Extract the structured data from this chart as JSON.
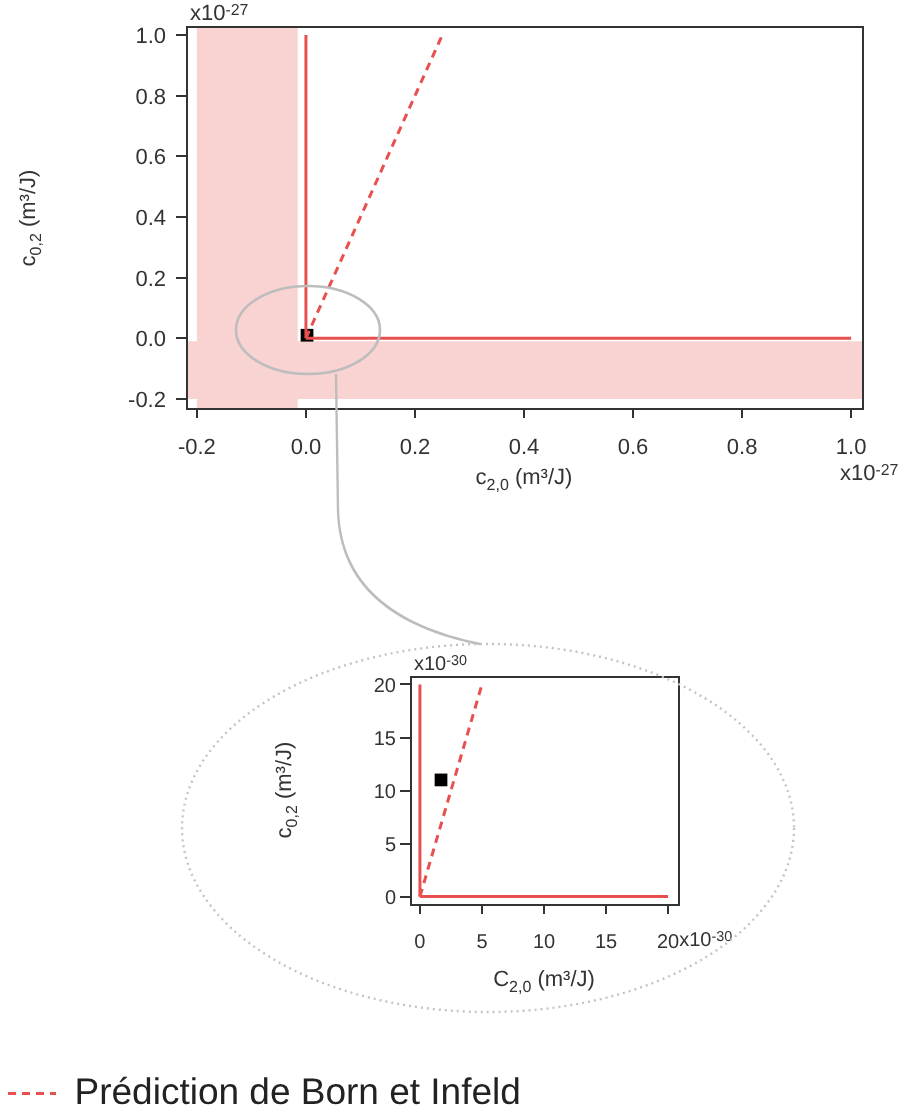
{
  "chart_data": [
    {
      "type": "line",
      "xlabel": "c$_{2,0}$ (m³/J)",
      "ylabel": "c$_{0,2}$ (m³/J)",
      "xlim": [
        -0.22,
        1.02
      ],
      "ylim": [
        -0.23,
        1.03
      ],
      "xticks": [
        -0.2,
        {
          "value": 0,
          "label": "0.0"
        },
        0.2,
        0.4,
        0.6,
        0.8,
        {
          "value": 1,
          "label": "1.0"
        }
      ],
      "yticks": [
        -0.2,
        {
          "value": 0,
          "label": "0.0"
        },
        0.2,
        0.4,
        0.6,
        0.8,
        {
          "value": 1,
          "label": "1.0"
        }
      ],
      "annotations": [
        "x10$^{-27}$",
        "x10$^{-27}$"
      ],
      "grid": false,
      "bands": [
        {
          "axis": "x",
          "from": -0.2,
          "to": -0.015,
          "color": "#f9d2d2"
        },
        {
          "axis": "y",
          "from": -0.2,
          "to": -0.01,
          "color": "#f9d2d2"
        }
      ],
      "series": [
        {
          "type": "line",
          "color": "#e8504f",
          "x": [
            0,
            0
          ],
          "values": [
            0,
            1
          ]
        },
        {
          "type": "line",
          "color": "#e8504f",
          "x": [
            0,
            1
          ],
          "values": [
            0,
            0
          ]
        },
        {
          "type": "line",
          "color": "#e8504f",
          "line_style": "dashed",
          "x": [
            0,
            0.25
          ],
          "values": [
            0,
            1
          ]
        },
        {
          "type": "scatter",
          "color": "#000000",
          "marker": "square",
          "x": [
            0.002
          ],
          "values": [
            0.01
          ]
        }
      ]
    },
    {
      "type": "line",
      "xlabel": "C$_{2,0}$ (m³/J)",
      "ylabel": "c$_{0,2}$ (m³/J)",
      "xlim": [
        -0.8,
        20.8
      ],
      "ylim": [
        -0.7,
        20.8
      ],
      "xticks": [
        0,
        5,
        10,
        15,
        20
      ],
      "yticks": [
        0,
        5,
        10,
        15,
        20
      ],
      "annotations": [
        "x10$^{-30}$",
        "x10$^{-30}$"
      ],
      "grid": false,
      "legend": "bottom left",
      "series": [
        {
          "type": "line",
          "color": "#e8504f",
          "x": [
            0,
            0
          ],
          "values": [
            0,
            20
          ]
        },
        {
          "type": "line",
          "color": "#e8504f",
          "x": [
            0,
            20
          ],
          "values": [
            0,
            0
          ]
        },
        {
          "type": "line",
          "name": "Prédiction de Born et Infeld",
          "color": "#e8504f",
          "line_style": "dashed",
          "x": [
            0,
            5
          ],
          "values": [
            0,
            20
          ]
        },
        {
          "type": "scatter",
          "color": "#000000",
          "marker": "square",
          "x": [
            1.7
          ],
          "values": [
            11
          ]
        }
      ]
    }
  ]
}
